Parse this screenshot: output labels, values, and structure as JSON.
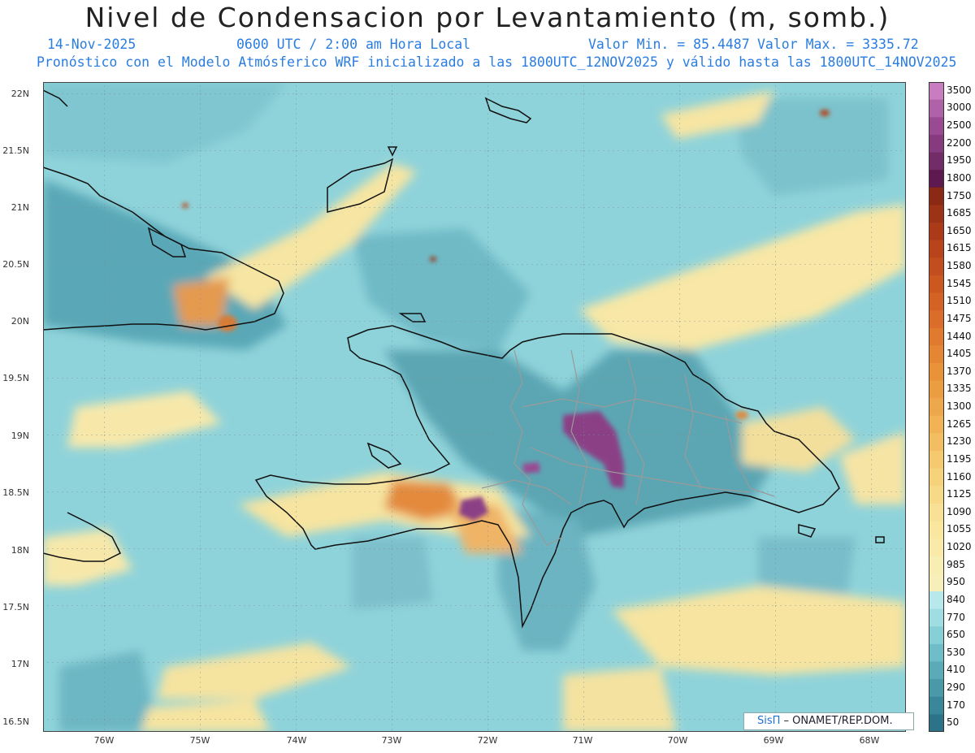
{
  "title": "Nivel de Condensacion por Levantamiento (m, somb.)",
  "header": {
    "date": "14-Nov-2025",
    "time": "0600 UTC / 2:00 am Hora Local",
    "min_label": "Valor Min. = 85.4487",
    "max_label": "Valor Max. = 3335.72",
    "model_info": "Pronóstico con el Modelo Atmósferico WRF inicializado a las 1800UTC_12NOV2025 y válido hasta las  1800UTC_14NOV2025"
  },
  "axes": {
    "lat_labels": [
      "22N",
      "21.5N",
      "21N",
      "20.5N",
      "20N",
      "19.5N",
      "19N",
      "18.5N",
      "18N",
      "17.5N",
      "17N",
      "16.5N"
    ],
    "lon_labels": [
      "76W",
      "75W",
      "74W",
      "73W",
      "72W",
      "71W",
      "70W",
      "69W",
      "68W"
    ]
  },
  "legend": {
    "labels": [
      "3500",
      "3000",
      "2500",
      "2200",
      "1950",
      "1800",
      "1750",
      "1685",
      "1650",
      "1615",
      "1580",
      "1545",
      "1510",
      "1475",
      "1440",
      "1405",
      "1370",
      "1335",
      "1300",
      "1265",
      "1230",
      "1195",
      "1160",
      "1125",
      "1090",
      "1055",
      "1020",
      "985",
      "950",
      "840",
      "770",
      "650",
      "530",
      "410",
      "290",
      "170",
      "50"
    ],
    "colors": [
      "#c77dc0",
      "#b062a8",
      "#9a4a92",
      "#863b7e",
      "#722d69",
      "#5e1a4e",
      "#8b2a14",
      "#9c3216",
      "#ab3a19",
      "#b9441c",
      "#c24d1e",
      "#cc5820",
      "#d46224",
      "#da6d29",
      "#e07a2e",
      "#e48634",
      "#e8923a",
      "#eb9d42",
      "#eea84c",
      "#f1b356",
      "#f3be62",
      "#f5c96e",
      "#f6d27b",
      "#f7da88",
      "#f8e194",
      "#f9e69f",
      "#f9eaa9",
      "#f8edb3",
      "#f6efba",
      "#b6e8ec",
      "#9fdde3",
      "#87cfd6",
      "#6fbdc8",
      "#5aaab8",
      "#4a99a9",
      "#3b879a",
      "#2c738a"
    ]
  },
  "credit": {
    "logo": "SisΠ",
    "text": " – ONAMET/REP.DOM."
  }
}
